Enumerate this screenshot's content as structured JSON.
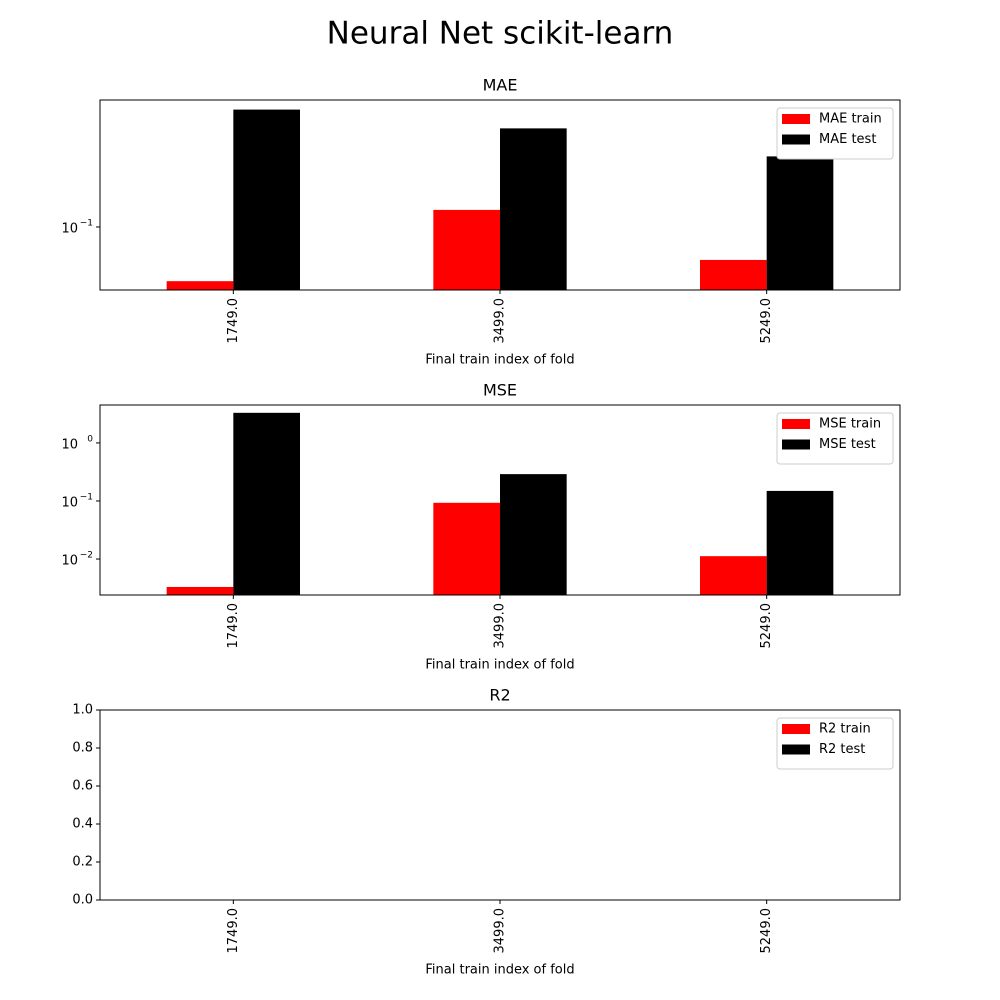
{
  "title": "Neural Net scikit-learn",
  "chart_data": [
    {
      "type": "bar",
      "title": "MAE",
      "xlabel": "Final train index of fold",
      "categories": [
        "1749.0",
        "3499.0",
        "5249.0"
      ],
      "series": [
        {
          "name": "MAE train",
          "color": "#ff0000",
          "values": [
            0.048,
            0.126,
            0.064
          ]
        },
        {
          "name": "MAE test",
          "color": "#000000",
          "values": [
            0.49,
            0.38,
            0.26
          ]
        }
      ],
      "log": true,
      "ylim": [
        0.0426,
        0.558
      ],
      "yticks": [
        {
          "value": 0.1,
          "label": "10",
          "exponent": "−1"
        }
      ],
      "legend": "upper right"
    },
    {
      "type": "bar",
      "title": "MSE",
      "xlabel": "Final train index of fold",
      "categories": [
        "1749.0",
        "3499.0",
        "5249.0"
      ],
      "series": [
        {
          "name": "MSE train",
          "color": "#ff0000",
          "values": [
            0.0033,
            0.093,
            0.0112
          ]
        },
        {
          "name": "MSE test",
          "color": "#000000",
          "values": [
            3.3,
            0.29,
            0.149
          ]
        }
      ],
      "log": true,
      "ylim": [
        0.0024,
        4.5
      ],
      "yticks": [
        {
          "value": 0.01,
          "label": "10",
          "exponent": "−2"
        },
        {
          "value": 0.1,
          "label": "10",
          "exponent": "−1"
        },
        {
          "value": 1,
          "label": "10",
          "exponent": "0"
        }
      ],
      "legend": "upper right"
    },
    {
      "type": "bar",
      "title": "R2",
      "xlabel": "Final train index of fold",
      "categories": [
        "1749.0",
        "3499.0",
        "5249.0"
      ],
      "series": [
        {
          "name": "R2 train",
          "color": "#ff0000",
          "values": [
            null,
            null,
            null
          ]
        },
        {
          "name": "R2 test",
          "color": "#000000",
          "values": [
            null,
            null,
            null
          ]
        }
      ],
      "log": false,
      "ylim": [
        0,
        1
      ],
      "yticks": [
        {
          "value": 0,
          "label": "0.0"
        },
        0.2,
        0.4,
        0.6,
        0.8,
        {
          "value": 1,
          "label": "1.0"
        }
      ],
      "legend": "upper right"
    }
  ]
}
